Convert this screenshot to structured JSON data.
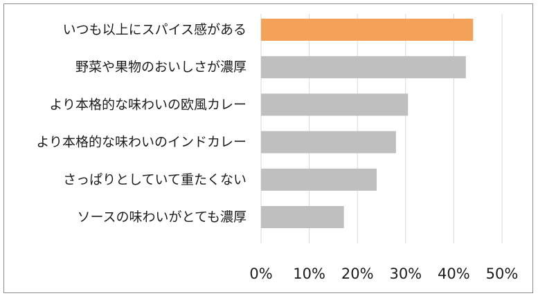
{
  "chart_data": {
    "type": "bar",
    "orientation": "horizontal",
    "categories": [
      "いつも以上にスパイス感がある",
      "野菜や果物のおいしさが濃厚",
      "より本格的な味わいの欧風カレー",
      "より本格的な味わいのインドカレー",
      "さっぱりとしていて重たくない",
      "ソースの味わいがとても濃厚"
    ],
    "values": [
      44,
      42.5,
      30.5,
      28,
      24,
      17.2
    ],
    "highlight_index": 0,
    "colors": {
      "highlight": "#F4A15A",
      "default": "#BFBFBF",
      "grid": "#D9D9D9"
    },
    "xlim": [
      0,
      50
    ],
    "xticks": [
      0,
      10,
      20,
      30,
      40,
      50
    ],
    "xtick_labels": [
      "0%",
      "10%",
      "20%",
      "30%",
      "40%",
      "50%"
    ],
    "grid": true,
    "title": "",
    "xlabel": "",
    "ylabel": ""
  }
}
